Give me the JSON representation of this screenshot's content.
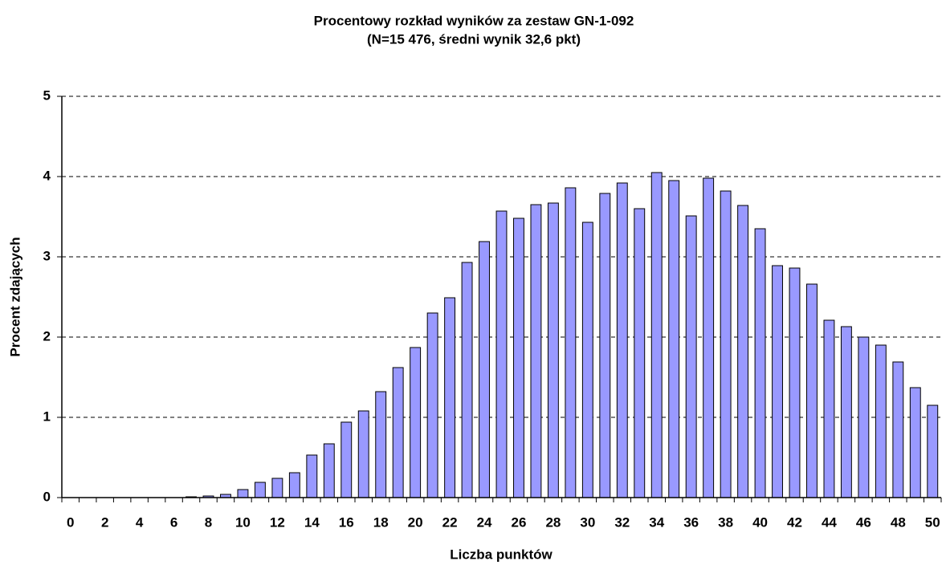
{
  "chart_data": {
    "type": "bar",
    "title": "Procentowy rozkład wyników za zestaw GN-1-092",
    "subtitle": "(N=15 476, średni wynik 32,6 pkt)",
    "x_label": "Liczba punktów",
    "y_label": "Procent zdających",
    "categories": [
      0,
      null,
      2,
      null,
      4,
      null,
      6,
      null,
      8,
      null,
      10,
      null,
      12,
      null,
      14,
      null,
      16,
      null,
      18,
      null,
      20,
      null,
      22,
      null,
      24,
      null,
      26,
      null,
      28,
      null,
      30,
      null,
      32,
      null,
      34,
      null,
      36,
      null,
      38,
      null,
      40,
      null,
      42,
      null,
      44,
      null,
      46,
      null,
      48,
      null,
      50
    ],
    "values": [
      0,
      0,
      0,
      0,
      0,
      0,
      0,
      0.01,
      0.02,
      0.04,
      0.1,
      0.19,
      0.24,
      0.31,
      0.53,
      0.67,
      0.94,
      1.08,
      1.32,
      1.62,
      1.87,
      2.3,
      2.49,
      2.93,
      3.19,
      3.57,
      3.48,
      3.65,
      3.67,
      3.86,
      3.43,
      3.79,
      3.92,
      3.6,
      4.05,
      3.95,
      3.51,
      3.98,
      3.82,
      3.64,
      3.35,
      2.89,
      2.86,
      2.66,
      2.21,
      2.13,
      2.0,
      1.9,
      1.69,
      1.37,
      1.15
    ],
    "color": "#9999ff",
    "ylim": [
      0,
      5
    ],
    "yticks": [
      0,
      1,
      2,
      3,
      4,
      5
    ],
    "grid": true
  }
}
